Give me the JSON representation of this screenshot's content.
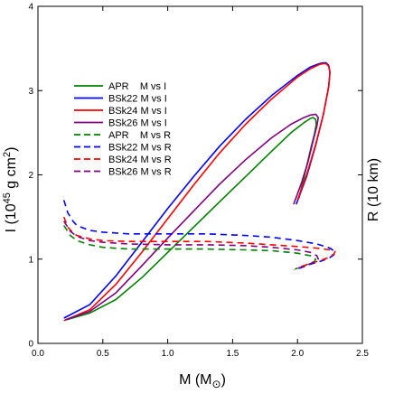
{
  "chart_data": {
    "type": "line",
    "xlabel": "M (M",
    "xlabel_sub": "⊙",
    "xlabel_close": ")",
    "ylabel_left": "I (10",
    "ylabel_left_sup": "45",
    "ylabel_left_mid": " g cm",
    "ylabel_left_sup2": "2",
    "ylabel_left_close": ")",
    "ylabel_right": "R (10 km)",
    "xlim": [
      0.0,
      2.5
    ],
    "ylim": [
      0,
      4
    ],
    "xticks": [
      "0.0",
      "0.5",
      "1.0",
      "1.5",
      "2.0",
      "2.5"
    ],
    "yticks": [
      "0",
      "1",
      "2",
      "3",
      "4"
    ],
    "legend_position": "upper-left",
    "series": [
      {
        "name": "APR    M vs I",
        "color": "#008000",
        "dash": "solid",
        "x": [
          0.22,
          0.4,
          0.6,
          0.8,
          1.0,
          1.2,
          1.4,
          1.6,
          1.8,
          1.95,
          2.05,
          2.1,
          2.12,
          2.14,
          2.145,
          2.13,
          2.1,
          2.07,
          2.04,
          2.01
        ],
        "y": [
          0.28,
          0.36,
          0.52,
          0.78,
          1.08,
          1.38,
          1.68,
          1.98,
          2.28,
          2.5,
          2.62,
          2.67,
          2.68,
          2.66,
          2.6,
          2.48,
          2.3,
          2.1,
          1.9,
          1.72
        ]
      },
      {
        "name": "BSk22 M vs I",
        "color": "#0000ff",
        "dash": "solid",
        "x": [
          0.2,
          0.4,
          0.6,
          0.8,
          1.0,
          1.2,
          1.4,
          1.6,
          1.8,
          2.0,
          2.1,
          2.17,
          2.2,
          2.22,
          2.24,
          2.25,
          2.24,
          2.2,
          2.14,
          2.07,
          1.99
        ],
        "y": [
          0.3,
          0.46,
          0.8,
          1.2,
          1.6,
          1.98,
          2.34,
          2.66,
          2.94,
          3.18,
          3.28,
          3.32,
          3.33,
          3.33,
          3.3,
          3.22,
          3.05,
          2.72,
          2.35,
          1.98,
          1.65
        ]
      },
      {
        "name": "BSk24 M vs I",
        "color": "#ff0000",
        "dash": "solid",
        "x": [
          0.2,
          0.4,
          0.6,
          0.8,
          1.0,
          1.2,
          1.4,
          1.6,
          1.8,
          2.0,
          2.1,
          2.17,
          2.2,
          2.22,
          2.24,
          2.25,
          2.24,
          2.2,
          2.14,
          2.07,
          2.0
        ],
        "y": [
          0.27,
          0.4,
          0.7,
          1.08,
          1.48,
          1.88,
          2.26,
          2.6,
          2.9,
          3.16,
          3.26,
          3.31,
          3.32,
          3.32,
          3.29,
          3.21,
          3.04,
          2.72,
          2.36,
          2.0,
          1.7
        ]
      },
      {
        "name": "BSk26 M vs I",
        "color": "#800080",
        "dash": "solid",
        "x": [
          0.21,
          0.4,
          0.6,
          0.8,
          1.0,
          1.2,
          1.4,
          1.6,
          1.8,
          1.95,
          2.05,
          2.1,
          2.14,
          2.16,
          2.15,
          2.12,
          2.08,
          2.03,
          1.97
        ],
        "y": [
          0.28,
          0.38,
          0.6,
          0.92,
          1.25,
          1.57,
          1.89,
          2.18,
          2.44,
          2.6,
          2.68,
          2.71,
          2.72,
          2.68,
          2.58,
          2.4,
          2.15,
          1.9,
          1.65
        ]
      },
      {
        "name": "APR    M vs R",
        "color": "#008000",
        "dash": "dashed",
        "x": [
          0.2,
          0.25,
          0.3,
          0.4,
          0.5,
          0.7,
          1.0,
          1.3,
          1.6,
          1.8,
          2.0,
          2.1,
          2.14,
          2.13,
          2.08,
          2.03,
          1.98
        ],
        "y": [
          1.4,
          1.28,
          1.22,
          1.17,
          1.14,
          1.12,
          1.12,
          1.12,
          1.11,
          1.1,
          1.07,
          1.04,
          1.0,
          0.97,
          0.94,
          0.91,
          0.88
        ]
      },
      {
        "name": "BSk22 M vs R",
        "color": "#0000ff",
        "dash": "dashed",
        "x": [
          0.2,
          0.23,
          0.27,
          0.3,
          0.4,
          0.5,
          0.7,
          1.0,
          1.3,
          1.6,
          1.8,
          2.0,
          2.15,
          2.25,
          2.29,
          2.28,
          2.24,
          2.17,
          2.1,
          2.05,
          1.99
        ],
        "y": [
          1.7,
          1.55,
          1.45,
          1.4,
          1.34,
          1.32,
          1.3,
          1.3,
          1.3,
          1.28,
          1.26,
          1.22,
          1.18,
          1.13,
          1.09,
          1.05,
          1.01,
          0.97,
          0.94,
          0.91,
          0.88
        ]
      },
      {
        "name": "BSk24 M vs R",
        "color": "#ff0000",
        "dash": "dashed",
        "x": [
          0.2,
          0.23,
          0.27,
          0.3,
          0.4,
          0.5,
          0.7,
          1.0,
          1.3,
          1.6,
          1.8,
          2.0,
          2.15,
          2.25,
          2.29,
          2.28,
          2.24,
          2.17,
          2.1,
          2.05,
          2.0
        ],
        "y": [
          1.5,
          1.38,
          1.31,
          1.28,
          1.24,
          1.22,
          1.21,
          1.21,
          1.21,
          1.19,
          1.17,
          1.15,
          1.13,
          1.11,
          1.09,
          1.06,
          1.02,
          0.98,
          0.95,
          0.92,
          0.9
        ]
      },
      {
        "name": "BSk26 M vs R",
        "color": "#800080",
        "dash": "dashed",
        "x": [
          0.2,
          0.25,
          0.3,
          0.4,
          0.5,
          0.7,
          1.0,
          1.3,
          1.6,
          1.8,
          2.0,
          2.1,
          2.15,
          2.16,
          2.12,
          2.06,
          2.0,
          1.97
        ],
        "y": [
          1.45,
          1.33,
          1.27,
          1.22,
          1.2,
          1.18,
          1.17,
          1.17,
          1.16,
          1.14,
          1.11,
          1.08,
          1.04,
          1.0,
          0.96,
          0.92,
          0.89,
          0.87
        ]
      }
    ]
  }
}
